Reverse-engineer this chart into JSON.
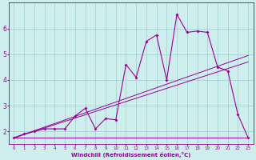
{
  "xlabel": "Windchill (Refroidissement éolien,°C)",
  "bg_color": "#ceeeed",
  "grid_color": "#9ecece",
  "line_color": "#990099",
  "spine_color": "#660066",
  "xlim": [
    -0.5,
    23.5
  ],
  "ylim": [
    1.5,
    7.0
  ],
  "xticks": [
    0,
    1,
    2,
    3,
    4,
    5,
    6,
    7,
    8,
    9,
    10,
    11,
    12,
    13,
    14,
    15,
    16,
    17,
    18,
    19,
    20,
    21,
    22,
    23
  ],
  "yticks": [
    2,
    3,
    4,
    5,
    6
  ],
  "flat_line_x": [
    0,
    23
  ],
  "flat_line_y": [
    1.75,
    1.75
  ],
  "line2_x": [
    0,
    23
  ],
  "line2_y": [
    1.75,
    4.7
  ],
  "line3_x": [
    0,
    23
  ],
  "line3_y": [
    1.75,
    4.95
  ],
  "obs_x": [
    0,
    1,
    2,
    3,
    4,
    5,
    6,
    7,
    8,
    9,
    10,
    11,
    12,
    13,
    14,
    15,
    16,
    17,
    18,
    19,
    20,
    21,
    22,
    23
  ],
  "obs_y": [
    1.75,
    1.9,
    2.0,
    2.1,
    2.1,
    2.1,
    2.6,
    2.9,
    2.1,
    2.5,
    2.45,
    4.6,
    4.1,
    5.5,
    5.75,
    4.0,
    6.55,
    5.85,
    5.9,
    5.85,
    4.5,
    4.35,
    2.65,
    1.75
  ]
}
